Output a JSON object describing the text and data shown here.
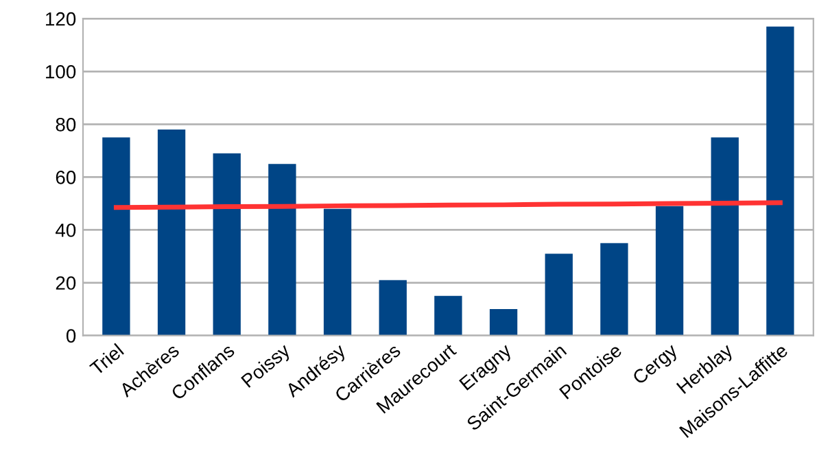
{
  "chart_data": {
    "type": "bar",
    "categories": [
      "Triel",
      "Achères",
      "Conflans",
      "Poissy",
      "Andrésy",
      "Carrières",
      "Maurecourt",
      "Eragny",
      "Saint-Germain",
      "Pontoise",
      "Cergy",
      "Herblay",
      "Maisons-Laffitte"
    ],
    "series": [
      {
        "color": "#004586",
        "values": [
          75,
          78,
          69,
          65,
          48,
          21,
          15,
          10,
          31,
          35,
          49,
          75,
          117
        ]
      },
      {
        "type": "line",
        "color": "#ff3333",
        "values": [
          48.5,
          48.6,
          48.8,
          48.9,
          49.1,
          49.2,
          49.4,
          49.5,
          49.7,
          49.8,
          50.0,
          50.1,
          50.3
        ]
      }
    ],
    "ylim": [
      0,
      120
    ],
    "yticks": [
      0,
      20,
      40,
      60,
      80,
      100,
      120
    ],
    "grid": "y",
    "legend": false
  }
}
